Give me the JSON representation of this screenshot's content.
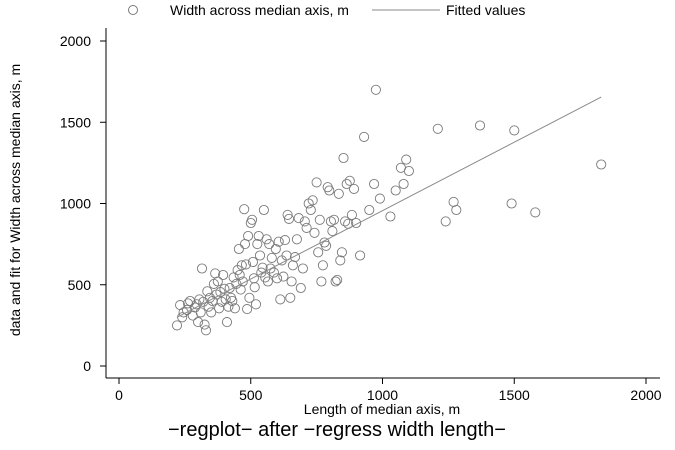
{
  "chart_data": {
    "type": "scatter",
    "title": "",
    "note": "−regplot− after −regress width length−",
    "xlabel": "Length of median axis, m",
    "ylabel": "data and fit for Width across median axis, m",
    "xlim": [
      0,
      2000
    ],
    "ylim": [
      0,
      2000
    ],
    "x_ticks": [
      "0",
      "500",
      "1000",
      "1500",
      "2000"
    ],
    "y_ticks": [
      "0",
      "500",
      "1000",
      "1500",
      "2000"
    ],
    "grid": false,
    "legend": {
      "position": "top",
      "items": [
        {
          "label": "Width across median axis, m",
          "marker": "hollow-circle"
        },
        {
          "label": "Fitted values",
          "marker": "line"
        }
      ]
    },
    "colors": {
      "marker": "#7a7a7a",
      "fit_line": "#8a8a8a",
      "axis": "#000000"
    },
    "series": [
      {
        "name": "Width across median axis, m",
        "kind": "scatter",
        "points": [
          [
            220,
            250
          ],
          [
            232,
            375
          ],
          [
            240,
            300
          ],
          [
            245,
            330
          ],
          [
            258,
            345
          ],
          [
            262,
            385
          ],
          [
            270,
            400
          ],
          [
            280,
            310
          ],
          [
            288,
            360
          ],
          [
            295,
            380
          ],
          [
            300,
            270
          ],
          [
            305,
            410
          ],
          [
            310,
            330
          ],
          [
            315,
            600
          ],
          [
            320,
            395
          ],
          [
            325,
            255
          ],
          [
            330,
            220
          ],
          [
            335,
            460
          ],
          [
            340,
            365
          ],
          [
            345,
            420
          ],
          [
            350,
            330
          ],
          [
            355,
            400
          ],
          [
            360,
            505
          ],
          [
            365,
            570
          ],
          [
            370,
            440
          ],
          [
            375,
            520
          ],
          [
            380,
            355
          ],
          [
            385,
            455
          ],
          [
            390,
            395
          ],
          [
            395,
            560
          ],
          [
            400,
            475
          ],
          [
            405,
            410
          ],
          [
            410,
            270
          ],
          [
            415,
            365
          ],
          [
            420,
            480
          ],
          [
            425,
            420
          ],
          [
            430,
            400
          ],
          [
            435,
            545
          ],
          [
            440,
            355
          ],
          [
            445,
            505
          ],
          [
            450,
            590
          ],
          [
            455,
            720
          ],
          [
            458,
            560
          ],
          [
            462,
            470
          ],
          [
            466,
            620
          ],
          [
            470,
            520
          ],
          [
            475,
            965
          ],
          [
            478,
            750
          ],
          [
            482,
            625
          ],
          [
            486,
            350
          ],
          [
            490,
            800
          ],
          [
            495,
            420
          ],
          [
            500,
            880
          ],
          [
            505,
            900
          ],
          [
            508,
            640
          ],
          [
            512,
            540
          ],
          [
            515,
            485
          ],
          [
            520,
            380
          ],
          [
            525,
            750
          ],
          [
            530,
            800
          ],
          [
            535,
            680
          ],
          [
            540,
            575
          ],
          [
            545,
            605
          ],
          [
            550,
            960
          ],
          [
            555,
            545
          ],
          [
            560,
            780
          ],
          [
            565,
            520
          ],
          [
            570,
            750
          ],
          [
            575,
            600
          ],
          [
            580,
            665
          ],
          [
            588,
            575
          ],
          [
            595,
            720
          ],
          [
            600,
            540
          ],
          [
            606,
            765
          ],
          [
            612,
            410
          ],
          [
            618,
            650
          ],
          [
            624,
            550
          ],
          [
            630,
            775
          ],
          [
            636,
            680
          ],
          [
            640,
            930
          ],
          [
            645,
            905
          ],
          [
            650,
            420
          ],
          [
            655,
            520
          ],
          [
            660,
            620
          ],
          [
            668,
            670
          ],
          [
            675,
            780
          ],
          [
            682,
            910
          ],
          [
            690,
            480
          ],
          [
            698,
            600
          ],
          [
            705,
            890
          ],
          [
            712,
            850
          ],
          [
            720,
            1000
          ],
          [
            728,
            960
          ],
          [
            735,
            1020
          ],
          [
            742,
            820
          ],
          [
            750,
            1130
          ],
          [
            756,
            700
          ],
          [
            762,
            900
          ],
          [
            768,
            520
          ],
          [
            774,
            620
          ],
          [
            780,
            760
          ],
          [
            786,
            740
          ],
          [
            792,
            1100
          ],
          [
            798,
            1080
          ],
          [
            804,
            890
          ],
          [
            810,
            830
          ],
          [
            816,
            900
          ],
          [
            822,
            520
          ],
          [
            828,
            530
          ],
          [
            834,
            1060
          ],
          [
            840,
            650
          ],
          [
            846,
            700
          ],
          [
            852,
            1280
          ],
          [
            858,
            890
          ],
          [
            864,
            1120
          ],
          [
            870,
            875
          ],
          [
            876,
            1140
          ],
          [
            884,
            930
          ],
          [
            892,
            1090
          ],
          [
            900,
            880
          ],
          [
            915,
            680
          ],
          [
            930,
            1410
          ],
          [
            950,
            960
          ],
          [
            968,
            1120
          ],
          [
            975,
            1700
          ],
          [
            990,
            1030
          ],
          [
            1030,
            920
          ],
          [
            1050,
            1080
          ],
          [
            1070,
            1220
          ],
          [
            1080,
            1120
          ],
          [
            1090,
            1270
          ],
          [
            1100,
            1200
          ],
          [
            1210,
            1460
          ],
          [
            1240,
            890
          ],
          [
            1270,
            1010
          ],
          [
            1280,
            960
          ],
          [
            1370,
            1480
          ],
          [
            1490,
            1000
          ],
          [
            1500,
            1450
          ],
          [
            1580,
            945
          ],
          [
            1830,
            1240
          ]
        ]
      },
      {
        "name": "Fitted values",
        "kind": "line",
        "points": [
          [
            220,
            300
          ],
          [
            1830,
            1655
          ]
        ]
      }
    ]
  }
}
